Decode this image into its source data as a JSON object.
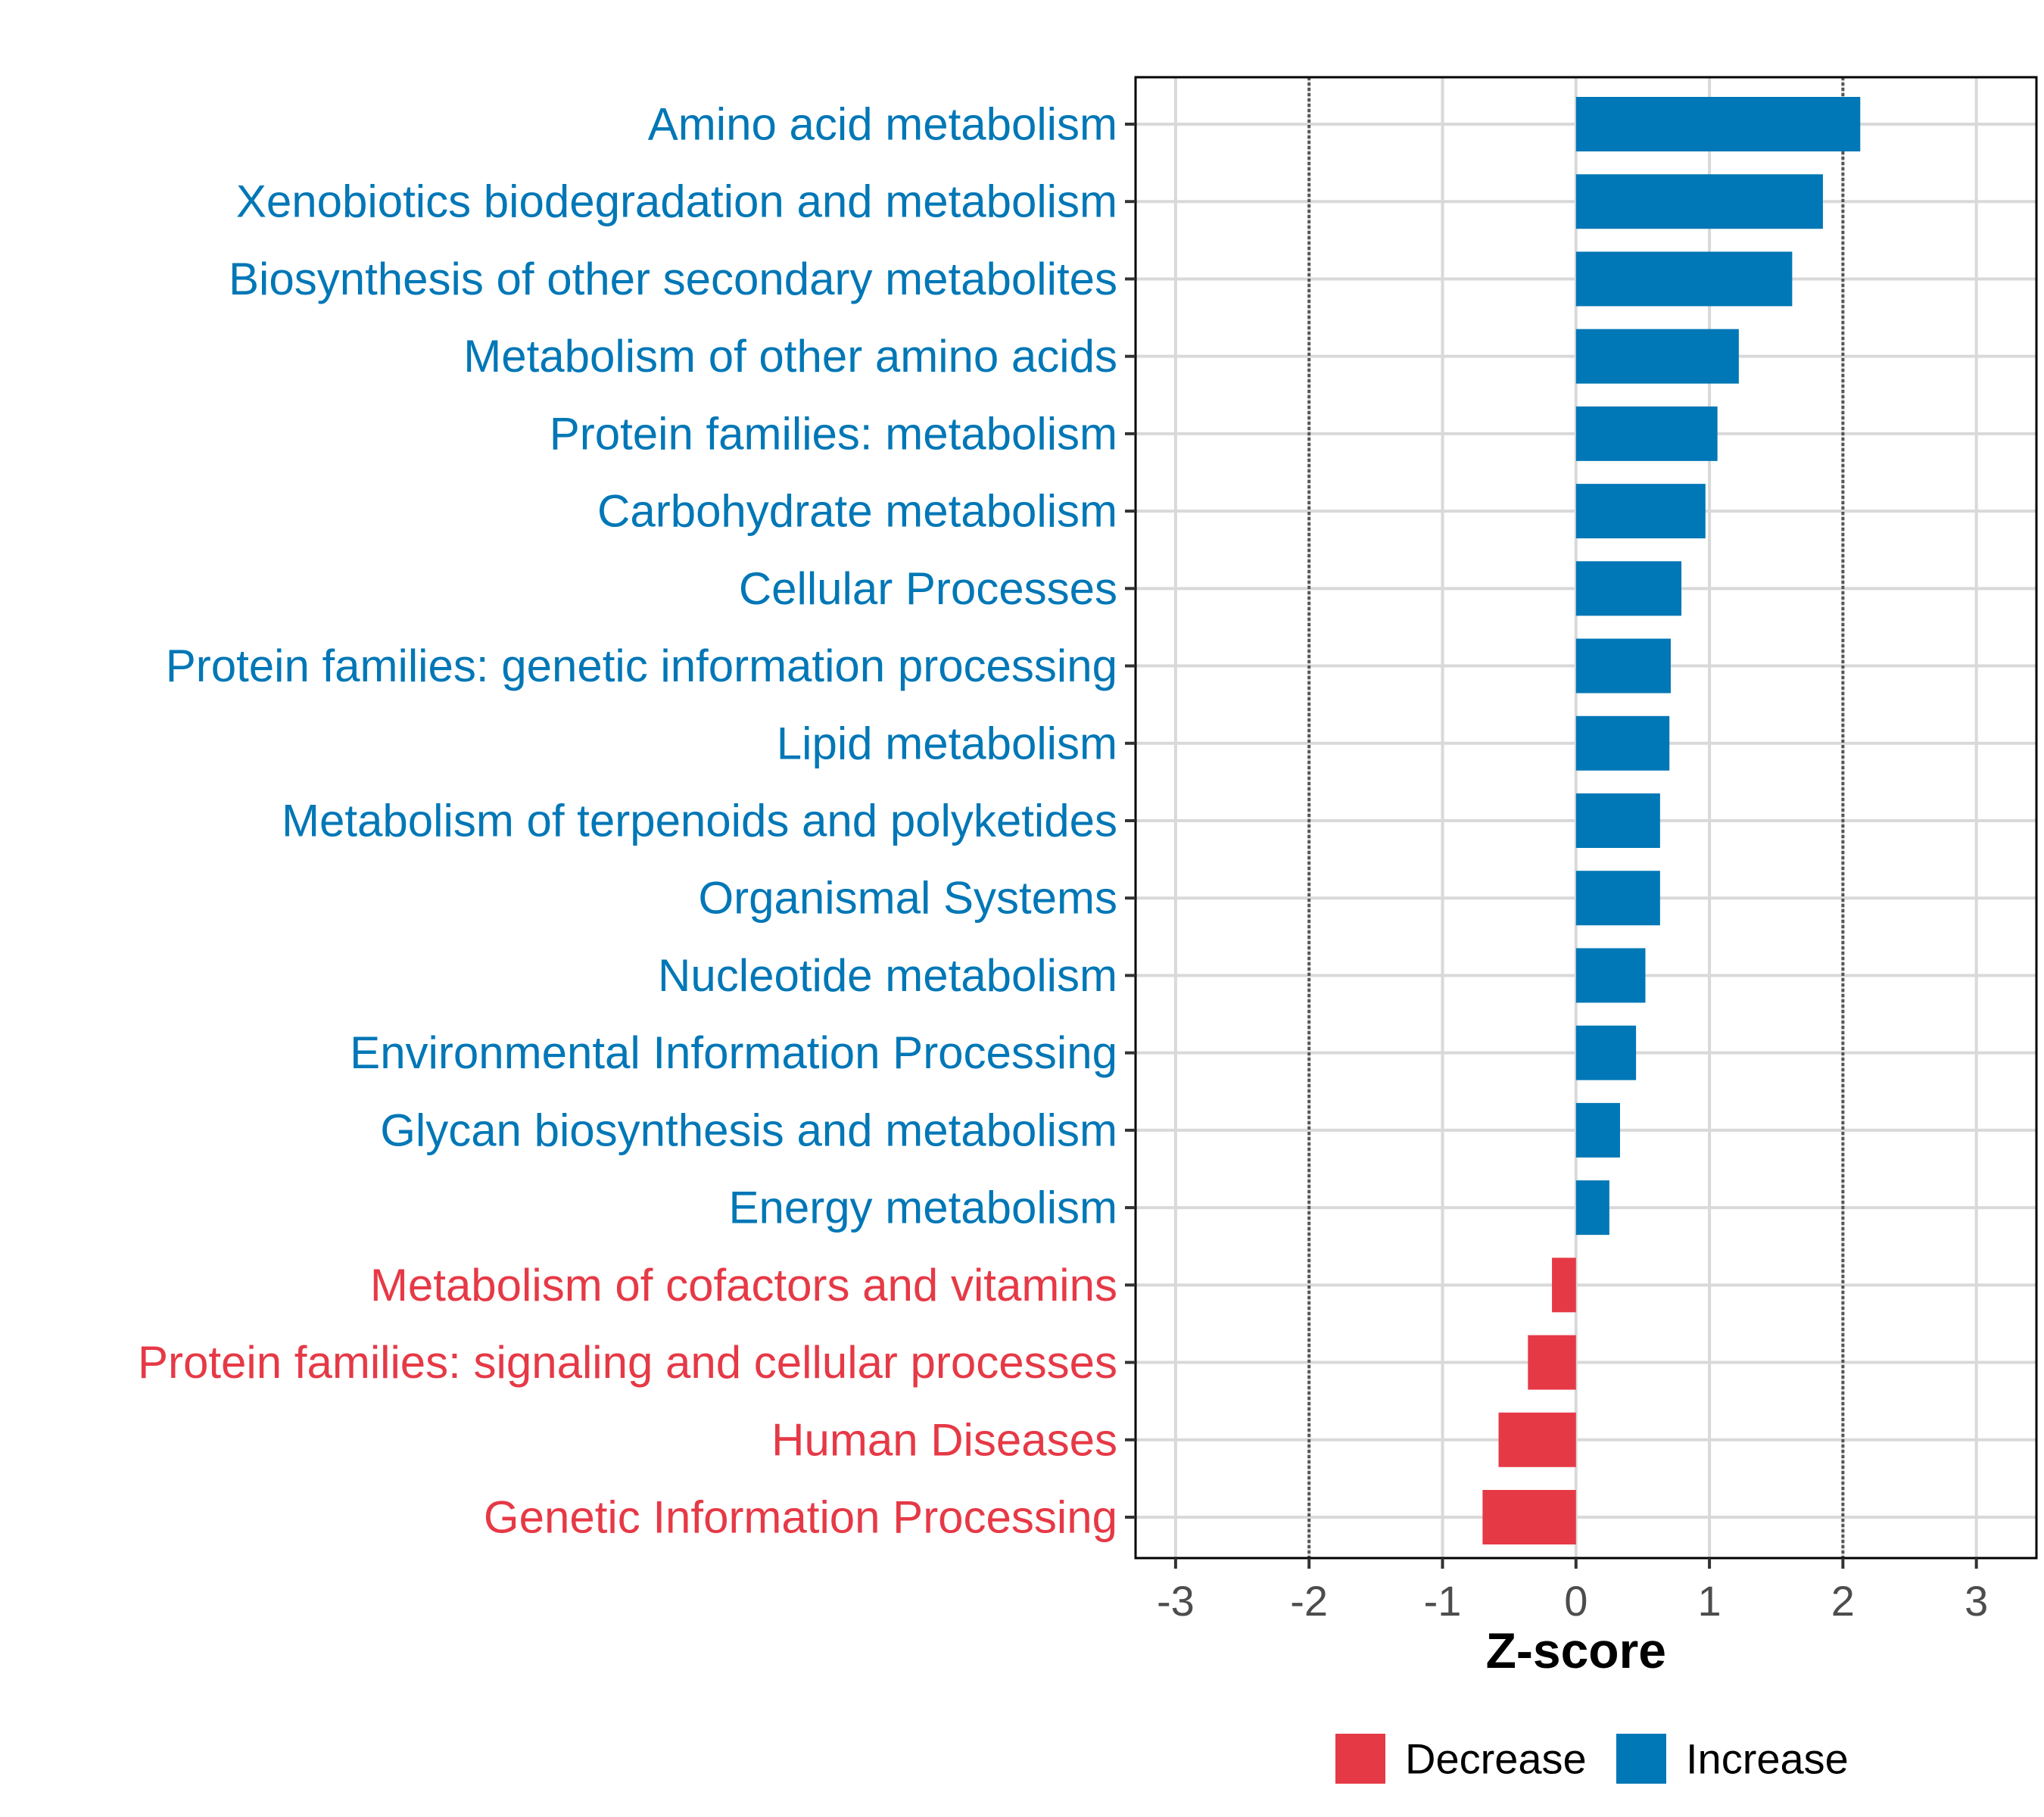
{
  "chart_data": {
    "type": "bar",
    "orientation": "horizontal",
    "title": "",
    "xlabel": "Z-score",
    "ylabel": "",
    "xlim": [
      -3.3,
      3.45
    ],
    "xticks": [
      "-3",
      "-2",
      "-1",
      "0",
      "1",
      "2",
      "3"
    ],
    "reference_lines": [
      -2,
      2
    ],
    "grid": true,
    "legend_position": "bottom",
    "legend": [
      {
        "label": "Decrease",
        "color": "#e63946"
      },
      {
        "label": "Increase",
        "color": "#0077b6"
      }
    ],
    "categories": [
      "Amino acid metabolism",
      "Xenobiotics biodegradation and metabolism",
      "Biosynthesis of other secondary metabolites",
      "Metabolism of other amino acids",
      "Protein families: metabolism",
      "Carbohydrate metabolism",
      "Cellular Processes",
      "Protein families: genetic information processing",
      "Lipid metabolism",
      "Metabolism of terpenoids and polyketides",
      "Organismal Systems",
      "Nucleotide metabolism",
      "Environmental Information Processing",
      "Glycan biosynthesis and metabolism",
      "Energy metabolism",
      "Metabolism of cofactors and vitamins",
      "Protein families: signaling and cellular processes",
      "Human Diseases",
      "Genetic Information Processing"
    ],
    "values": [
      2.13,
      1.85,
      1.62,
      1.22,
      1.06,
      0.97,
      0.79,
      0.71,
      0.7,
      0.63,
      0.63,
      0.52,
      0.45,
      0.33,
      0.25,
      -0.18,
      -0.36,
      -0.58,
      -0.7
    ],
    "groups": [
      "Increase",
      "Increase",
      "Increase",
      "Increase",
      "Increase",
      "Increase",
      "Increase",
      "Increase",
      "Increase",
      "Increase",
      "Increase",
      "Increase",
      "Increase",
      "Increase",
      "Increase",
      "Decrease",
      "Decrease",
      "Decrease",
      "Decrease"
    ]
  }
}
